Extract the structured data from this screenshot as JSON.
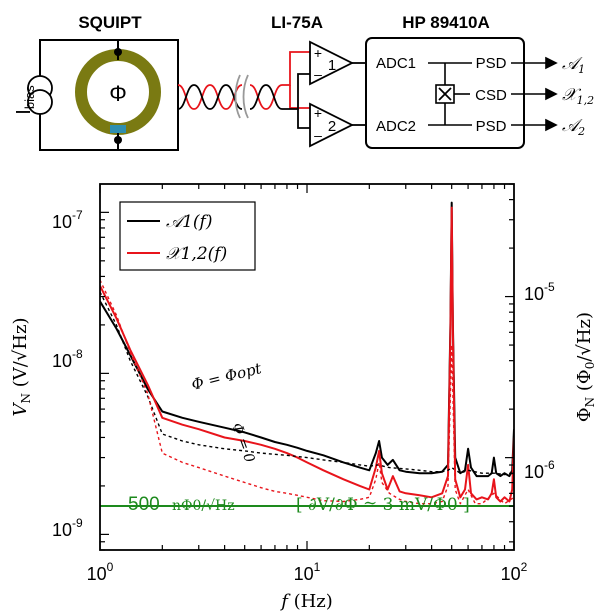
{
  "schematic": {
    "squipt_title": "SQUIPT",
    "lockin_title": "LI-75A",
    "analyzer_title": "HP 89410A",
    "bias_label_main": "I",
    "bias_label_sub": "bias",
    "phi_symbol": "Φ",
    "amp1_plus": "+",
    "amp1_minus": "–",
    "amp1_gain": "1",
    "amp2_plus": "+",
    "amp2_minus": "–",
    "amp2_gain": "2",
    "adc1": "ADC1",
    "adc2": "ADC2",
    "psd1": "PSD",
    "csd": "CSD",
    "psd2": "PSD",
    "out1": "𝒜",
    "out1_sub": "1",
    "out2": "𝒳",
    "out2_sub": "1,2",
    "out3": "𝒜",
    "out3_sub": "2"
  },
  "labels": {
    "ylabel_left": "V_N (V/√Hz)",
    "ylabel_right": "Φ_N (Φ0/√Hz)",
    "xlabel": "f (Hz)",
    "x_ticks": [
      "10^0",
      "10^1",
      "10^2"
    ],
    "y_ticks_left": [
      "10^-9",
      "10^-8",
      "10^-7"
    ],
    "y_ticks_right": [
      "10^-6",
      "10^-5"
    ],
    "legend_black": "𝒜1(f)",
    "legend_red": "𝒳1,2(f)",
    "annot_opt": "Φ = Φopt",
    "annot_zero": "Φ = 0",
    "floor_value": "500",
    "floor_unit": "nΦ0/√Hz",
    "floor_bracket": "[ ∂V/∂Φ ≃ 3 mV/Φ0 ]"
  },
  "colors": {
    "black_series": "#000000",
    "red_series": "#e8141b",
    "green_floor": "#1d8a1d",
    "ring": "#7a7a12",
    "junction": "#2f8fb0"
  },
  "chart_data": {
    "type": "line",
    "title": "",
    "xlabel": "f (Hz)",
    "ylabel": "V_N (V/√Hz)",
    "ylabel_right": "Φ_N (Φ0/√Hz)",
    "xscale": "log",
    "yscale": "log",
    "xlim": [
      1,
      100
    ],
    "ylim": [
      8e-10,
      1.5e-07
    ],
    "ylim_right": [
      2.67e-07,
      5e-05
    ],
    "legend_position": "top-left",
    "grid": false,
    "series": [
      {
        "name": "𝒜1(f)",
        "color": "#000000",
        "style": "solid",
        "condition": "Φ = Φopt",
        "points": [
          [
            1,
            2.8e-08
          ],
          [
            1.2,
            1.9e-08
          ],
          [
            1.4,
            1.3e-08
          ],
          [
            1.7,
            8e-09
          ],
          [
            2,
            5.8e-09
          ],
          [
            2.5,
            5.3e-09
          ],
          [
            3,
            5e-09
          ],
          [
            4,
            4.6e-09
          ],
          [
            5,
            4.3e-09
          ],
          [
            6,
            4e-09
          ],
          [
            7,
            3.75e-09
          ],
          [
            8,
            3.6e-09
          ],
          [
            9,
            3.45e-09
          ],
          [
            10,
            3.3e-09
          ],
          [
            12,
            3.1e-09
          ],
          [
            15,
            2.8e-09
          ],
          [
            18,
            2.6e-09
          ],
          [
            20,
            2.5e-09
          ],
          [
            21.5,
            3.2e-09
          ],
          [
            22.3,
            3.8e-09
          ],
          [
            23,
            3e-09
          ],
          [
            24.5,
            2.7e-09
          ],
          [
            26,
            2.9e-09
          ],
          [
            28,
            2.5e-09
          ],
          [
            30,
            2.45e-09
          ],
          [
            35,
            2.4e-09
          ],
          [
            40,
            2.4e-09
          ],
          [
            45,
            2.45e-09
          ],
          [
            48,
            2.7e-09
          ],
          [
            49.3,
            2e-08
          ],
          [
            50,
            1.15e-07
          ],
          [
            50.7,
            2e-08
          ],
          [
            52,
            3e-09
          ],
          [
            55,
            2.4e-09
          ],
          [
            58,
            2.5e-09
          ],
          [
            60,
            3.4e-09
          ],
          [
            62,
            2.6e-09
          ],
          [
            66,
            2.3e-09
          ],
          [
            70,
            2.3e-09
          ],
          [
            75,
            2.3e-09
          ],
          [
            78,
            2.4e-09
          ],
          [
            80,
            3e-09
          ],
          [
            82,
            2.4e-09
          ],
          [
            86,
            2.3e-09
          ],
          [
            90,
            2.4e-09
          ],
          [
            95,
            2.3e-09
          ],
          [
            98,
            2.5e-09
          ],
          [
            100,
            4.5e-09
          ]
        ]
      },
      {
        "name": "𝒳1,2(f)",
        "color": "#e8141b",
        "style": "solid",
        "condition": "Φ = Φopt",
        "points": [
          [
            1,
            3.5e-08
          ],
          [
            1.2,
            2.2e-08
          ],
          [
            1.4,
            1.4e-08
          ],
          [
            1.7,
            8.5e-09
          ],
          [
            2,
            5.3e-09
          ],
          [
            2.5,
            4.8e-09
          ],
          [
            3,
            4.5e-09
          ],
          [
            4,
            4e-09
          ],
          [
            5,
            3.8e-09
          ],
          [
            6,
            3.6e-09
          ],
          [
            7,
            3.4e-09
          ],
          [
            8,
            3.2e-09
          ],
          [
            9,
            3e-09
          ],
          [
            10,
            2.8e-09
          ],
          [
            12,
            2.5e-09
          ],
          [
            15,
            2.2e-09
          ],
          [
            18,
            2e-09
          ],
          [
            20,
            1.9e-09
          ],
          [
            21.5,
            2.6e-09
          ],
          [
            22.3,
            3.3e-09
          ],
          [
            23,
            2.4e-09
          ],
          [
            24.5,
            1.9e-09
          ],
          [
            26,
            2.3e-09
          ],
          [
            28,
            1.85e-09
          ],
          [
            30,
            1.8e-09
          ],
          [
            35,
            1.75e-09
          ],
          [
            40,
            1.7e-09
          ],
          [
            45,
            1.8e-09
          ],
          [
            48,
            2.3e-09
          ],
          [
            49.3,
            1.8e-08
          ],
          [
            50,
            1.07e-07
          ],
          [
            50.7,
            1.8e-08
          ],
          [
            52,
            2.2e-09
          ],
          [
            55,
            1.7e-09
          ],
          [
            58,
            1.9e-09
          ],
          [
            60,
            2.7e-09
          ],
          [
            62,
            1.8e-09
          ],
          [
            66,
            1.65e-09
          ],
          [
            70,
            1.7e-09
          ],
          [
            75,
            1.65e-09
          ],
          [
            78,
            1.8e-09
          ],
          [
            80,
            2.2e-09
          ],
          [
            82,
            1.7e-09
          ],
          [
            86,
            1.6e-09
          ],
          [
            90,
            1.7e-09
          ],
          [
            95,
            1.6e-09
          ],
          [
            98,
            1.9e-09
          ],
          [
            100,
            4e-09
          ]
        ]
      },
      {
        "name": "𝒜1(f), Φ = 0",
        "color": "#000000",
        "style": "dashed",
        "condition": "Φ = 0",
        "points": [
          [
            1,
            3.2e-08
          ],
          [
            1.2,
            2e-08
          ],
          [
            1.4,
            1.2e-08
          ],
          [
            1.7,
            7.2e-09
          ],
          [
            2,
            4.2e-09
          ],
          [
            2.5,
            3.8e-09
          ],
          [
            3,
            3.6e-09
          ],
          [
            4,
            3.4e-09
          ],
          [
            5,
            3.3e-09
          ],
          [
            6,
            3.2e-09
          ],
          [
            8,
            3.1e-09
          ],
          [
            10,
            3e-09
          ],
          [
            12,
            2.9e-09
          ],
          [
            15,
            2.8e-09
          ],
          [
            18,
            2.7e-09
          ],
          [
            20,
            2.65e-09
          ],
          [
            22,
            2.7e-09
          ],
          [
            25,
            2.6e-09
          ],
          [
            30,
            2.55e-09
          ],
          [
            35,
            2.5e-09
          ],
          [
            40,
            2.45e-09
          ],
          [
            45,
            2.45e-09
          ],
          [
            48,
            2.5e-09
          ],
          [
            50,
            2.6e-09
          ],
          [
            55,
            2.4e-09
          ],
          [
            60,
            2.5e-09
          ],
          [
            70,
            2.4e-09
          ],
          [
            80,
            2.4e-09
          ],
          [
            90,
            2.35e-09
          ],
          [
            100,
            2.4e-09
          ]
        ]
      },
      {
        "name": "𝒳1,2(f), Φ = 0",
        "color": "#e8141b",
        "style": "dashed",
        "condition": "Φ = 0",
        "points": [
          [
            1,
            3.8e-08
          ],
          [
            1.2,
            2.3e-08
          ],
          [
            1.4,
            1.35e-08
          ],
          [
            1.7,
            7.5e-09
          ],
          [
            2,
            3.2e-09
          ],
          [
            2.5,
            2.8e-09
          ],
          [
            3,
            2.6e-09
          ],
          [
            4,
            2.3e-09
          ],
          [
            5,
            2.1e-09
          ],
          [
            6,
            1.95e-09
          ],
          [
            7,
            1.85e-09
          ],
          [
            8,
            1.8e-09
          ],
          [
            9,
            1.75e-09
          ],
          [
            10,
            1.7e-09
          ],
          [
            12,
            1.62e-09
          ],
          [
            15,
            1.6e-09
          ],
          [
            18,
            1.65e-09
          ],
          [
            20,
            1.7e-09
          ],
          [
            21.5,
            2.2e-09
          ],
          [
            22.3,
            2.8e-09
          ],
          [
            23,
            2.1e-09
          ],
          [
            25,
            1.8e-09
          ],
          [
            28,
            1.65e-09
          ],
          [
            30,
            1.6e-09
          ],
          [
            35,
            1.55e-09
          ],
          [
            40,
            1.55e-09
          ],
          [
            45,
            1.6e-09
          ],
          [
            48,
            2e-09
          ],
          [
            50,
            1.5e-08
          ],
          [
            52,
            1.9e-09
          ],
          [
            55,
            1.55e-09
          ],
          [
            60,
            1.9e-09
          ],
          [
            65,
            1.55e-09
          ],
          [
            70,
            1.55e-09
          ],
          [
            80,
            1.8e-09
          ],
          [
            90,
            1.55e-09
          ],
          [
            100,
            1.7e-09
          ]
        ]
      },
      {
        "name": "500 nΦ0/√Hz",
        "color": "#1d8a1d",
        "style": "solid",
        "points": [
          [
            1,
            1.5e-09
          ],
          [
            100,
            1.5e-09
          ]
        ]
      }
    ]
  }
}
